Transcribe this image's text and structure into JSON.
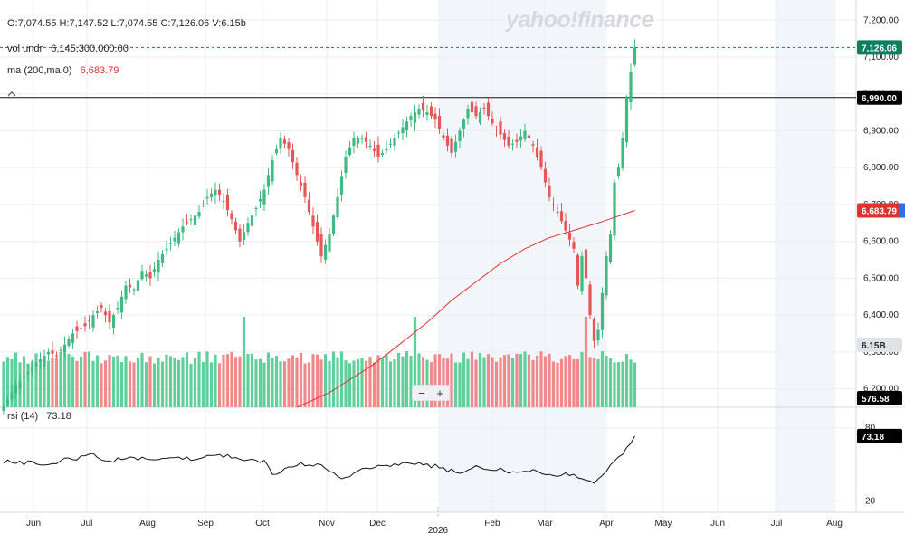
{
  "header": {
    "ohlc": {
      "o": "O:7,074.55",
      "h": "H:7,147.52",
      "l": "L:7,074.55",
      "c": "C:7,126.06",
      "v": "V:6.15b"
    },
    "vol_label": "vol undr",
    "vol_value": "6,145,300,000.00",
    "ma_label": "ma (200,ma,0)",
    "ma_value": "6,683.79",
    "rsi_label": "rsi (14)",
    "rsi_value": "73.18",
    "watermark": "yahoo!finance"
  },
  "zoom": {
    "minus": "−",
    "plus": "+"
  },
  "colors": {
    "up": "#3fba82",
    "down": "#e85555",
    "ma": "#e03131",
    "vol_up": "#5fcf9b",
    "vol_down": "#f08a8a",
    "shade": "#f2f5f9",
    "price_tag": "#0d7f5f"
  },
  "icons": {
    "collapse": "caret-up-icon"
  },
  "chart_data": {
    "type": "candlestick",
    "price_axis": {
      "range": [
        6150,
        7235
      ],
      "ticks": [
        "6,200.00",
        "6,300.00",
        "6,400.00",
        "6,500.00",
        "6,600.00",
        "6,700.00",
        "6,800.00",
        "6,900.00",
        "7,000.00",
        "7,100.00",
        "7,200.00"
      ]
    },
    "rsi_axis": {
      "ticks": [
        "20",
        "80"
      ],
      "range": [
        15,
        85
      ]
    },
    "x_axis": {
      "ticks": [
        "Jun",
        "Jul",
        "Aug",
        "Sep",
        "Oct",
        "Nov",
        "Dec",
        "Feb",
        "Mar",
        "Apr",
        "May",
        "Jun",
        "Jul",
        "Aug"
      ],
      "year_marker": "2026"
    },
    "tags": {
      "last_price": "7,126.06",
      "level_line": "6,990.00",
      "ma": "6,683.79",
      "volume": "6.15B",
      "volume_axis": "576.58",
      "rsi": "73.18"
    },
    "level_line_value": 6990,
    "last_price_value": 7126.06,
    "price_anchors": [
      [
        0,
        6150
      ],
      [
        1,
        6170
      ],
      [
        2,
        6190
      ],
      [
        3,
        6210
      ],
      [
        5,
        6230
      ],
      [
        7,
        6260
      ],
      [
        9,
        6280
      ],
      [
        11,
        6300
      ],
      [
        13,
        6290
      ],
      [
        15,
        6320
      ],
      [
        17,
        6350
      ],
      [
        20,
        6370
      ],
      [
        22,
        6400
      ],
      [
        24,
        6420
      ],
      [
        26,
        6380
      ],
      [
        28,
        6420
      ],
      [
        30,
        6480
      ],
      [
        32,
        6470
      ],
      [
        34,
        6520
      ],
      [
        36,
        6500
      ],
      [
        38,
        6550
      ],
      [
        40,
        6580
      ],
      [
        42,
        6610
      ],
      [
        44,
        6640
      ],
      [
        46,
        6660
      ],
      [
        48,
        6680
      ],
      [
        50,
        6720
      ],
      [
        52,
        6740
      ],
      [
        54,
        6710
      ],
      [
        56,
        6660
      ],
      [
        58,
        6600
      ],
      [
        60,
        6650
      ],
      [
        62,
        6690
      ],
      [
        64,
        6740
      ],
      [
        66,
        6820
      ],
      [
        68,
        6880
      ],
      [
        70,
        6850
      ],
      [
        72,
        6780
      ],
      [
        74,
        6720
      ],
      [
        76,
        6640
      ],
      [
        78,
        6560
      ],
      [
        80,
        6620
      ],
      [
        82,
        6720
      ],
      [
        84,
        6830
      ],
      [
        86,
        6880
      ],
      [
        88,
        6880
      ],
      [
        90,
        6860
      ],
      [
        92,
        6830
      ],
      [
        94,
        6850
      ],
      [
        96,
        6880
      ],
      [
        98,
        6910
      ],
      [
        100,
        6940
      ],
      [
        102,
        6960
      ],
      [
        104,
        6950
      ],
      [
        106,
        6930
      ],
      [
        108,
        6880
      ],
      [
        110,
        6840
      ],
      [
        112,
        6900
      ],
      [
        114,
        6960
      ],
      [
        116,
        6940
      ],
      [
        118,
        6960
      ],
      [
        120,
        6920
      ],
      [
        122,
        6890
      ],
      [
        124,
        6860
      ],
      [
        126,
        6870
      ],
      [
        128,
        6900
      ],
      [
        130,
        6860
      ],
      [
        132,
        6800
      ],
      [
        134,
        6720
      ],
      [
        136,
        6680
      ],
      [
        138,
        6630
      ],
      [
        140,
        6580
      ],
      [
        141,
        6480
      ],
      [
        142,
        6560
      ],
      [
        143,
        6500
      ],
      [
        144,
        6400
      ],
      [
        145,
        6330
      ],
      [
        146,
        6360
      ],
      [
        147,
        6460
      ],
      [
        148,
        6560
      ],
      [
        149,
        6620
      ],
      [
        150,
        6760
      ],
      [
        151,
        6800
      ],
      [
        152,
        6880
      ],
      [
        153,
        6990
      ],
      [
        154,
        7060
      ],
      [
        155,
        7126
      ]
    ],
    "ma_anchors": [
      [
        72,
        6150
      ],
      [
        80,
        6190
      ],
      [
        90,
        6260
      ],
      [
        96,
        6310
      ],
      [
        104,
        6380
      ],
      [
        110,
        6440
      ],
      [
        116,
        6490
      ],
      [
        122,
        6540
      ],
      [
        128,
        6580
      ],
      [
        134,
        6610
      ],
      [
        140,
        6630
      ],
      [
        146,
        6650
      ],
      [
        150,
        6665
      ],
      [
        155,
        6684
      ]
    ],
    "rsi_anchors": [
      [
        0,
        52
      ],
      [
        10,
        50
      ],
      [
        18,
        55
      ],
      [
        22,
        58
      ],
      [
        26,
        52
      ],
      [
        30,
        56
      ],
      [
        34,
        55
      ],
      [
        40,
        55
      ],
      [
        46,
        54
      ],
      [
        50,
        56
      ],
      [
        54,
        57
      ],
      [
        58,
        55
      ],
      [
        64,
        53
      ],
      [
        66,
        42
      ],
      [
        70,
        48
      ],
      [
        74,
        50
      ],
      [
        78,
        49
      ],
      [
        82,
        40
      ],
      [
        84,
        38
      ],
      [
        88,
        46
      ],
      [
        92,
        48
      ],
      [
        96,
        50
      ],
      [
        100,
        50
      ],
      [
        104,
        50
      ],
      [
        108,
        46
      ],
      [
        112,
        44
      ],
      [
        116,
        48
      ],
      [
        120,
        46
      ],
      [
        124,
        44
      ],
      [
        128,
        46
      ],
      [
        132,
        42
      ],
      [
        136,
        40
      ],
      [
        140,
        42
      ],
      [
        143,
        36
      ],
      [
        145,
        33
      ],
      [
        147,
        40
      ],
      [
        150,
        52
      ],
      [
        153,
        62
      ],
      [
        155,
        72
      ]
    ]
  }
}
